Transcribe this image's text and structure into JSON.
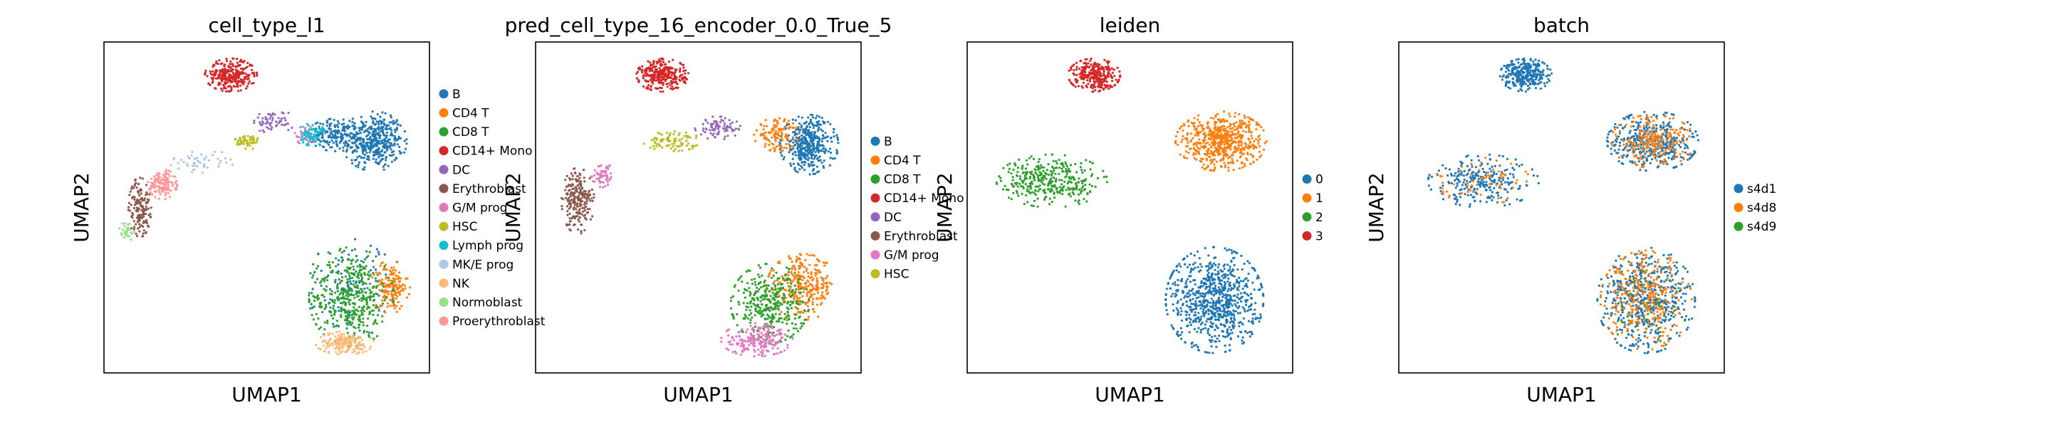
{
  "figure": {
    "type": "scatter",
    "description_panels": 4
  },
  "colors": {
    "tab10": [
      "#1f77b4",
      "#ff7f0e",
      "#2ca02c",
      "#d62728",
      "#9467bd",
      "#8c564b",
      "#e377c2",
      "#bcbd22",
      "#17becf",
      "#aec7e8",
      "#ffbb78",
      "#98df8a",
      "#ff9896"
    ]
  },
  "chart_data": [
    {
      "type": "scatter",
      "title": "cell_type_l1",
      "xlabel": "UMAP1",
      "ylabel": "UMAP2",
      "xlim": [
        0,
        10
      ],
      "ylim": [
        0,
        10
      ],
      "grid": false,
      "legend": {
        "position": "right-outside",
        "labels": [
          "B",
          "CD4 T",
          "CD8 T",
          "CD14+ Mono",
          "DC",
          "Erythroblast",
          "G/M prog",
          "HSC",
          "Lymph prog",
          "MK/E prog",
          "NK",
          "Normoblast",
          "Proerythroblast"
        ]
      },
      "clusters": [
        {
          "label": "B",
          "color_index": 0,
          "cx": 8.3,
          "cy": 7.0,
          "rx": 1.0,
          "ry": 0.9,
          "n": 420
        },
        {
          "label": "B",
          "color_index": 0,
          "cx": 7.1,
          "cy": 7.2,
          "rx": 0.8,
          "ry": 0.5,
          "n": 160
        },
        {
          "label": "B",
          "color_index": 0,
          "cx": 7.6,
          "cy": 2.6,
          "rx": 1.3,
          "ry": 1.6,
          "n": 120
        },
        {
          "label": "CD4 T",
          "color_index": 1,
          "cx": 8.8,
          "cy": 2.6,
          "rx": 0.6,
          "ry": 0.8,
          "n": 160
        },
        {
          "label": "CD8 T",
          "color_index": 2,
          "cx": 7.6,
          "cy": 2.3,
          "rx": 1.3,
          "ry": 1.5,
          "n": 420
        },
        {
          "label": "CD14+ Mono",
          "color_index": 3,
          "cx": 3.9,
          "cy": 9.0,
          "rx": 0.8,
          "ry": 0.5,
          "n": 300
        },
        {
          "label": "DC",
          "color_index": 4,
          "cx": 5.2,
          "cy": 7.6,
          "rx": 0.7,
          "ry": 0.35,
          "n": 60
        },
        {
          "label": "Erythroblast",
          "color_index": 5,
          "cx": 1.1,
          "cy": 5.0,
          "rx": 0.35,
          "ry": 0.9,
          "n": 150
        },
        {
          "label": "G/M prog",
          "color_index": 6,
          "cx": 6.2,
          "cy": 7.2,
          "rx": 0.4,
          "ry": 0.3,
          "n": 40
        },
        {
          "label": "HSC",
          "color_index": 7,
          "cx": 4.4,
          "cy": 7.0,
          "rx": 0.4,
          "ry": 0.25,
          "n": 60
        },
        {
          "label": "Lymph prog",
          "color_index": 8,
          "cx": 6.4,
          "cy": 7.2,
          "rx": 0.4,
          "ry": 0.35,
          "n": 70
        },
        {
          "label": "MK/E prog",
          "color_index": 9,
          "cx": 3.0,
          "cy": 6.4,
          "rx": 1.0,
          "ry": 0.35,
          "n": 50
        },
        {
          "label": "NK",
          "color_index": 10,
          "cx": 7.4,
          "cy": 0.9,
          "rx": 0.9,
          "ry": 0.35,
          "n": 180
        },
        {
          "label": "Normoblast",
          "color_index": 11,
          "cx": 0.7,
          "cy": 4.3,
          "rx": 0.3,
          "ry": 0.3,
          "n": 30
        },
        {
          "label": "Proerythroblast",
          "color_index": 12,
          "cx": 1.8,
          "cy": 5.7,
          "rx": 0.45,
          "ry": 0.45,
          "n": 140
        }
      ]
    },
    {
      "type": "scatter",
      "title": "pred_cell_type_16_encoder_0.0_True_5",
      "xlabel": "UMAP1",
      "ylabel": "UMAP2",
      "xlim": [
        0,
        10
      ],
      "ylim": [
        0,
        10
      ],
      "grid": false,
      "legend": {
        "position": "right-outside",
        "labels": [
          "B",
          "CD4 T",
          "CD8 T",
          "CD14+ Mono",
          "DC",
          "Erythroblast",
          "G/M prog",
          "HSC"
        ]
      },
      "clusters": [
        {
          "label": "B",
          "color_index": 0,
          "cx": 8.4,
          "cy": 6.9,
          "rx": 0.9,
          "ry": 0.9,
          "n": 400
        },
        {
          "label": "CD4 T",
          "color_index": 1,
          "cx": 7.4,
          "cy": 7.2,
          "rx": 0.7,
          "ry": 0.5,
          "n": 120
        },
        {
          "label": "CD4 T",
          "color_index": 1,
          "cx": 8.2,
          "cy": 2.6,
          "rx": 1.1,
          "ry": 1.0,
          "n": 300
        },
        {
          "label": "CD8 T",
          "color_index": 2,
          "cx": 7.2,
          "cy": 2.1,
          "rx": 1.2,
          "ry": 1.2,
          "n": 360
        },
        {
          "label": "CD14+ Mono",
          "color_index": 3,
          "cx": 3.9,
          "cy": 9.0,
          "rx": 0.8,
          "ry": 0.5,
          "n": 300
        },
        {
          "label": "DC",
          "color_index": 4,
          "cx": 5.6,
          "cy": 7.4,
          "rx": 0.7,
          "ry": 0.35,
          "n": 80
        },
        {
          "label": "Erythroblast",
          "color_index": 5,
          "cx": 1.3,
          "cy": 5.2,
          "rx": 0.5,
          "ry": 1.0,
          "n": 220
        },
        {
          "label": "G/M prog",
          "color_index": 6,
          "cx": 6.8,
          "cy": 1.0,
          "rx": 1.1,
          "ry": 0.5,
          "n": 200
        },
        {
          "label": "G/M prog",
          "color_index": 6,
          "cx": 2.1,
          "cy": 6.0,
          "rx": 0.4,
          "ry": 0.4,
          "n": 60
        },
        {
          "label": "HSC",
          "color_index": 7,
          "cx": 4.2,
          "cy": 7.0,
          "rx": 0.9,
          "ry": 0.3,
          "n": 90
        }
      ]
    },
    {
      "type": "scatter",
      "title": "leiden",
      "xlabel": "UMAP1",
      "ylabel": "UMAP2",
      "xlim": [
        0,
        10
      ],
      "ylim": [
        0,
        10
      ],
      "grid": false,
      "legend": {
        "position": "right-outside",
        "labels": [
          "0",
          "1",
          "2",
          "3"
        ]
      },
      "clusters": [
        {
          "label": "0",
          "color_index": 0,
          "cx": 7.6,
          "cy": 2.2,
          "rx": 1.5,
          "ry": 1.6,
          "n": 800
        },
        {
          "label": "1",
          "color_index": 1,
          "cx": 7.8,
          "cy": 7.0,
          "rx": 1.4,
          "ry": 0.9,
          "n": 600
        },
        {
          "label": "2",
          "color_index": 2,
          "cx": 2.6,
          "cy": 5.8,
          "rx": 1.7,
          "ry": 0.8,
          "n": 350
        },
        {
          "label": "3",
          "color_index": 3,
          "cx": 3.9,
          "cy": 9.0,
          "rx": 0.8,
          "ry": 0.5,
          "n": 300
        }
      ]
    },
    {
      "type": "scatter",
      "title": "batch",
      "xlabel": "UMAP1",
      "ylabel": "UMAP2",
      "xlim": [
        0,
        10
      ],
      "ylim": [
        0,
        10
      ],
      "grid": false,
      "legend": {
        "position": "right-outside",
        "labels": [
          "s4d1",
          "s4d8",
          "s4d9"
        ]
      },
      "clusters": [
        {
          "label": "s4d1",
          "color_index": 0,
          "cx": 3.9,
          "cy": 9.0,
          "rx": 0.8,
          "ry": 0.5,
          "n": 300
        },
        {
          "label": "s4d1",
          "color_index": 0,
          "cx": 7.8,
          "cy": 7.0,
          "rx": 1.4,
          "ry": 0.9,
          "n": 400
        },
        {
          "label": "s4d1",
          "color_index": 0,
          "cx": 2.6,
          "cy": 5.8,
          "rx": 1.7,
          "ry": 0.8,
          "n": 250
        },
        {
          "label": "s4d1",
          "color_index": 0,
          "cx": 7.6,
          "cy": 2.2,
          "rx": 1.5,
          "ry": 1.6,
          "n": 500
        },
        {
          "label": "s4d8",
          "color_index": 1,
          "cx": 7.8,
          "cy": 7.0,
          "rx": 1.3,
          "ry": 0.8,
          "n": 220
        },
        {
          "label": "s4d8",
          "color_index": 1,
          "cx": 7.6,
          "cy": 2.2,
          "rx": 1.4,
          "ry": 1.5,
          "n": 320
        },
        {
          "label": "s4d8",
          "color_index": 1,
          "cx": 2.6,
          "cy": 5.8,
          "rx": 1.5,
          "ry": 0.7,
          "n": 60
        },
        {
          "label": "s4d9",
          "color_index": 2,
          "cx": 7.6,
          "cy": 2.2,
          "rx": 1.4,
          "ry": 1.5,
          "n": 40
        }
      ]
    }
  ]
}
